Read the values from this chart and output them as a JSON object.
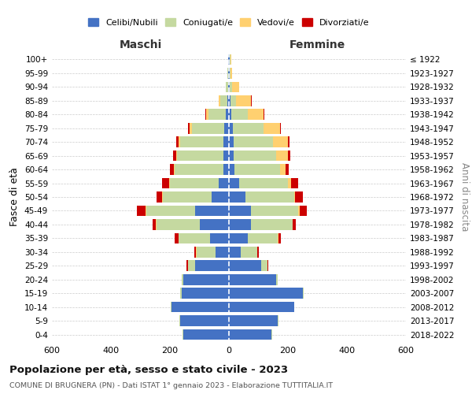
{
  "age_groups": [
    "0-4",
    "5-9",
    "10-14",
    "15-19",
    "20-24",
    "25-29",
    "30-34",
    "35-39",
    "40-44",
    "45-49",
    "50-54",
    "55-59",
    "60-64",
    "65-69",
    "70-74",
    "75-79",
    "80-84",
    "85-89",
    "90-94",
    "95-99",
    "100+"
  ],
  "birth_years": [
    "2018-2022",
    "2013-2017",
    "2008-2012",
    "2003-2007",
    "1998-2002",
    "1993-1997",
    "1988-1992",
    "1983-1987",
    "1978-1982",
    "1973-1977",
    "1968-1972",
    "1963-1967",
    "1958-1962",
    "1953-1957",
    "1948-1952",
    "1943-1947",
    "1938-1942",
    "1933-1937",
    "1928-1932",
    "1923-1927",
    "≤ 1922"
  ],
  "maschi": {
    "celibi": [
      155,
      165,
      195,
      160,
      155,
      115,
      45,
      65,
      100,
      115,
      60,
      35,
      20,
      20,
      20,
      15,
      10,
      5,
      2,
      2,
      2
    ],
    "coniugati": [
      2,
      2,
      2,
      5,
      5,
      25,
      65,
      105,
      145,
      165,
      165,
      165,
      165,
      155,
      145,
      110,
      60,
      25,
      8,
      3,
      2
    ],
    "vedovi": [
      0,
      0,
      0,
      0,
      0,
      0,
      2,
      2,
      2,
      2,
      2,
      2,
      2,
      5,
      5,
      8,
      8,
      5,
      2,
      0,
      0
    ],
    "divorziati": [
      0,
      0,
      0,
      0,
      0,
      5,
      5,
      12,
      12,
      30,
      18,
      25,
      12,
      10,
      8,
      5,
      2,
      0,
      0,
      0,
      0
    ]
  },
  "femmine": {
    "nubili": [
      145,
      165,
      220,
      250,
      160,
      110,
      40,
      65,
      75,
      75,
      55,
      35,
      18,
      15,
      15,
      12,
      8,
      5,
      2,
      2,
      2
    ],
    "coniugate": [
      2,
      2,
      2,
      2,
      5,
      20,
      55,
      100,
      140,
      160,
      165,
      165,
      155,
      145,
      135,
      105,
      55,
      20,
      8,
      3,
      2
    ],
    "vedove": [
      0,
      0,
      0,
      0,
      0,
      0,
      0,
      2,
      2,
      5,
      5,
      10,
      20,
      40,
      50,
      55,
      55,
      50,
      25,
      5,
      3
    ],
    "divorziate": [
      0,
      0,
      0,
      0,
      0,
      2,
      5,
      8,
      10,
      25,
      25,
      25,
      10,
      8,
      5,
      5,
      2,
      2,
      0,
      0,
      0
    ]
  },
  "colors": {
    "celibi": "#4472C4",
    "coniugati": "#C5D9A0",
    "vedovi": "#FFD070",
    "divorziati": "#CC0000"
  },
  "xlim": 600,
  "title": "Popolazione per età, sesso e stato civile - 2023",
  "subtitle": "COMUNE DI BRUGNERA (PN) - Dati ISTAT 1° gennaio 2023 - Elaborazione TUTTITALIA.IT",
  "ylabel_left": "Fasce di età",
  "ylabel_right": "Anni di nascita",
  "xlabel_left": "Maschi",
  "xlabel_right": "Femmine",
  "legend_labels": [
    "Celibi/Nubili",
    "Coniugati/e",
    "Vedovi/e",
    "Divorziati/e"
  ],
  "background_color": "#ffffff",
  "grid_color": "#cccccc"
}
